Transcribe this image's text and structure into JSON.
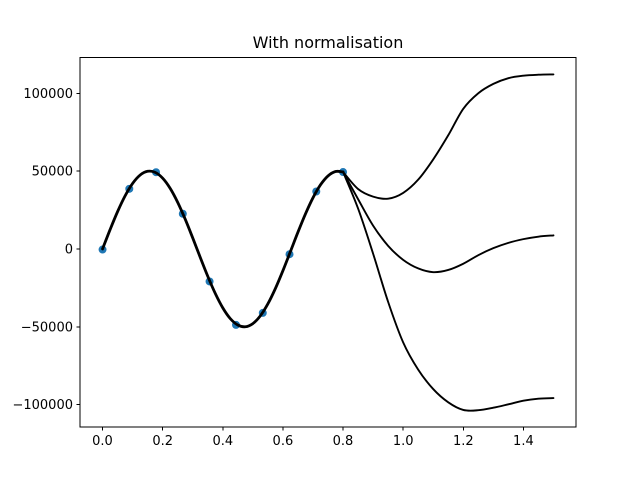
{
  "figure": {
    "background_color": "#ffffff",
    "axes_color": "#000000",
    "tick_label_color": "#000000"
  },
  "chart_data": {
    "type": "line",
    "title": "With normalisation",
    "xlabel": "",
    "ylabel": "",
    "xlim": [
      -0.075,
      1.575
    ],
    "ylim": [
      -114500,
      122900
    ],
    "grid": false,
    "legend": null,
    "x_ticks": [
      0.0,
      0.2,
      0.4,
      0.6,
      0.8,
      1.0,
      1.2,
      1.4
    ],
    "x_tick_labels": [
      "0.0",
      "0.2",
      "0.4",
      "0.6",
      "0.8",
      "1.0",
      "1.2",
      "1.4"
    ],
    "y_ticks": [
      -100000,
      -50000,
      0,
      50000,
      100000
    ],
    "y_tick_labels": [
      "−100000",
      "−50000",
      "0",
      "50000",
      "100000"
    ],
    "scatter": {
      "name": "training-data-points",
      "color": "#1f77b4",
      "marker_radius": 4,
      "x": [
        0.0,
        0.089,
        0.178,
        0.267,
        0.356,
        0.444,
        0.533,
        0.622,
        0.711,
        0.8
      ],
      "y": [
        -400,
        38600,
        49300,
        22600,
        -20900,
        -48800,
        -41100,
        -3400,
        36900,
        49400
      ]
    },
    "series": [
      {
        "name": "fitted-curve-common",
        "color": "#000000",
        "linewidth": 2.8,
        "x": [
          0.0,
          0.025,
          0.05,
          0.075,
          0.1,
          0.125,
          0.15,
          0.175,
          0.2,
          0.225,
          0.25,
          0.275,
          0.3,
          0.325,
          0.35,
          0.375,
          0.4,
          0.425,
          0.45,
          0.475,
          0.5,
          0.525,
          0.55,
          0.575,
          0.6,
          0.625,
          0.65,
          0.675,
          0.7,
          0.725,
          0.75,
          0.775,
          0.8
        ],
        "y": [
          0,
          12370,
          23971,
          34082,
          42074,
          47449,
          49875,
          49196,
          45465,
          38904,
          29924,
          19084,
          7056,
          -5410,
          -17540,
          -28581,
          -37840,
          -44749,
          -48876,
          -49988,
          -47946,
          -42947,
          -35276,
          -25414,
          -13971,
          -1659,
          10756,
          22499,
          32849,
          41163,
          46899,
          49731,
          49468
        ]
      },
      {
        "name": "extrapolation-upper",
        "color": "#000000",
        "linewidth": 1.9,
        "x": [
          0.8,
          0.85,
          0.9,
          0.95,
          1.0,
          1.05,
          1.1,
          1.15,
          1.2,
          1.25,
          1.3,
          1.35,
          1.4,
          1.45,
          1.5
        ],
        "y": [
          49468,
          38500,
          33600,
          32300,
          36000,
          44500,
          57500,
          73000,
          90000,
          100000,
          106000,
          109700,
          111300,
          111900,
          112100
        ]
      },
      {
        "name": "extrapolation-middle",
        "color": "#000000",
        "linewidth": 1.9,
        "x": [
          0.8,
          0.85,
          0.9,
          0.95,
          1.0,
          1.05,
          1.1,
          1.15,
          1.2,
          1.25,
          1.3,
          1.35,
          1.4,
          1.45,
          1.5
        ],
        "y": [
          49468,
          32000,
          15000,
          2000,
          -7000,
          -12500,
          -14900,
          -13500,
          -9500,
          -4000,
          500,
          3900,
          6300,
          7900,
          8700
        ]
      },
      {
        "name": "extrapolation-lower",
        "color": "#000000",
        "linewidth": 1.9,
        "x": [
          0.8,
          0.85,
          0.9,
          0.95,
          1.0,
          1.05,
          1.1,
          1.15,
          1.2,
          1.25,
          1.3,
          1.35,
          1.4,
          1.45,
          1.5
        ],
        "y": [
          49468,
          26000,
          -3000,
          -34000,
          -60000,
          -77500,
          -90000,
          -98500,
          -103400,
          -103600,
          -102000,
          -99800,
          -97500,
          -96200,
          -95800
        ]
      }
    ]
  }
}
